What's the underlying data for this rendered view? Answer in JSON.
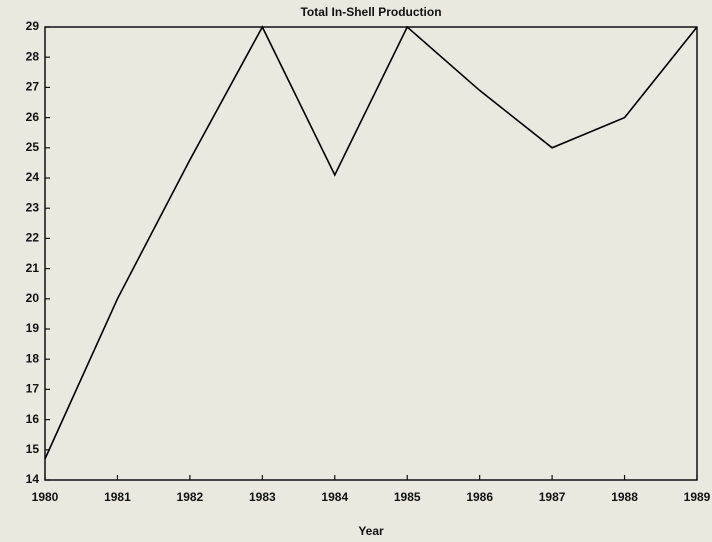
{
  "chart_data": {
    "type": "line",
    "title": "Total In-Shell Production",
    "xlabel": "Year",
    "x": [
      1980,
      1981,
      1982,
      1983,
      1984,
      1985,
      1986,
      1987,
      1988,
      1989
    ],
    "series": [
      {
        "name": "Total In-Shell Production",
        "color": "#000000",
        "values": [
          14.7,
          20.0,
          24.6,
          29,
          24.1,
          29,
          26.9,
          25,
          26,
          29
        ]
      }
    ],
    "xlim": [
      1980,
      1989
    ],
    "xticks": [
      1980,
      1981,
      1982,
      1983,
      1984,
      1985,
      1986,
      1987,
      1988,
      1989
    ],
    "ylim": [
      14,
      29
    ],
    "yticks": [
      14,
      15,
      16,
      17,
      18,
      19,
      20,
      21,
      22,
      23,
      24,
      25,
      26,
      27,
      28,
      29
    ],
    "grid": false,
    "legend": false
  }
}
